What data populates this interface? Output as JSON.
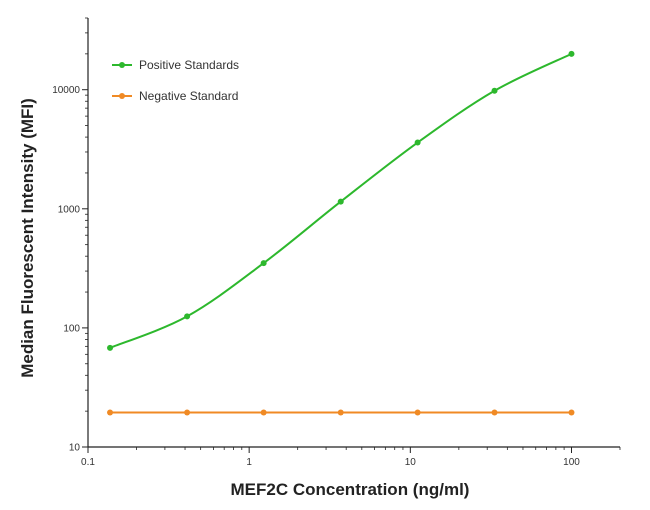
{
  "chart_data": {
    "type": "line",
    "title": "",
    "xlabel": "MEF2C Concentration (ng/ml)",
    "ylabel": "Median  Fluorescent Intensity  (MFI)",
    "xscale": "log",
    "yscale": "log",
    "xlim": [
      0.1,
      200
    ],
    "ylim": [
      10,
      40000
    ],
    "x_ticks": [
      0.1,
      1,
      10,
      100
    ],
    "x_tick_labels": [
      "0.1",
      "1",
      "10",
      "100"
    ],
    "y_ticks": [
      10,
      100,
      1000,
      10000
    ],
    "y_tick_labels": [
      "10",
      "100",
      "1000",
      "10000"
    ],
    "grid": false,
    "legend_position": "top-left",
    "series": [
      {
        "name": "Positive Standards",
        "color": "#2db82d",
        "x": [
          0.137,
          0.412,
          1.23,
          3.7,
          11.1,
          33.3,
          100
        ],
        "y": [
          68,
          125,
          350,
          1150,
          3600,
          9800,
          20000
        ]
      },
      {
        "name": "Negative Standard",
        "color": "#f08a24",
        "x": [
          0.137,
          0.412,
          1.23,
          3.7,
          11.1,
          33.3,
          100
        ],
        "y": [
          19.5,
          19.5,
          19.5,
          19.5,
          19.5,
          19.5,
          19.5
        ]
      }
    ]
  }
}
